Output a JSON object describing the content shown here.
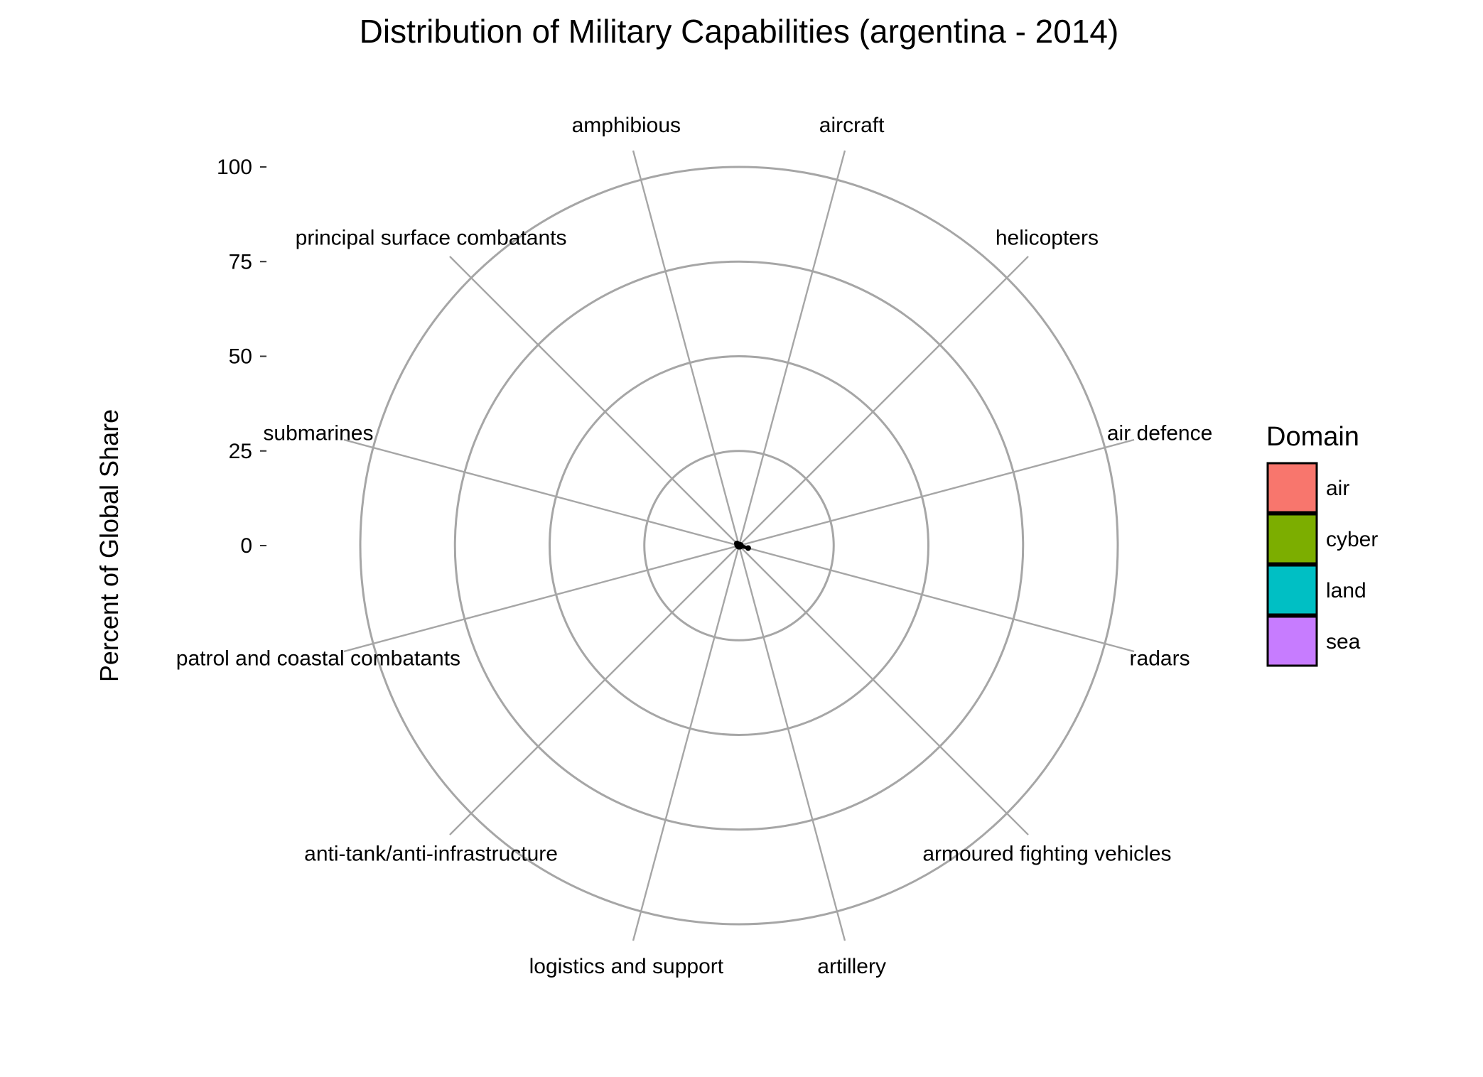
{
  "chart_data": {
    "type": "radar",
    "title": "Distribution of Military Capabilities (argentina - 2014)",
    "ylabel": "Percent of Global Share",
    "ylim": [
      0,
      100
    ],
    "yticks": [
      0,
      25,
      50,
      75,
      100
    ],
    "categories": [
      "aircraft",
      "helicopters",
      "air defence",
      "radars",
      "armoured fighting vehicles",
      "artillery",
      "logistics and support",
      "anti-tank/anti-infrastructure",
      "patrol and coastal combatants",
      "submarines",
      "principal surface combatants",
      "amphibious"
    ],
    "series": [
      {
        "values": [
          0.3,
          0.3,
          0.5,
          2.5,
          0.4,
          0.3,
          0.3,
          0.3,
          0.3,
          0.5,
          0.8,
          0.3
        ]
      }
    ],
    "legend": {
      "title": "Domain",
      "position": "right",
      "items": [
        {
          "label": "air",
          "color": "#F8766D"
        },
        {
          "label": "cyber",
          "color": "#7CAE00"
        },
        {
          "label": "land",
          "color": "#00BFC4"
        },
        {
          "label": "sea",
          "color": "#C77CFF"
        }
      ]
    },
    "grid": true
  }
}
